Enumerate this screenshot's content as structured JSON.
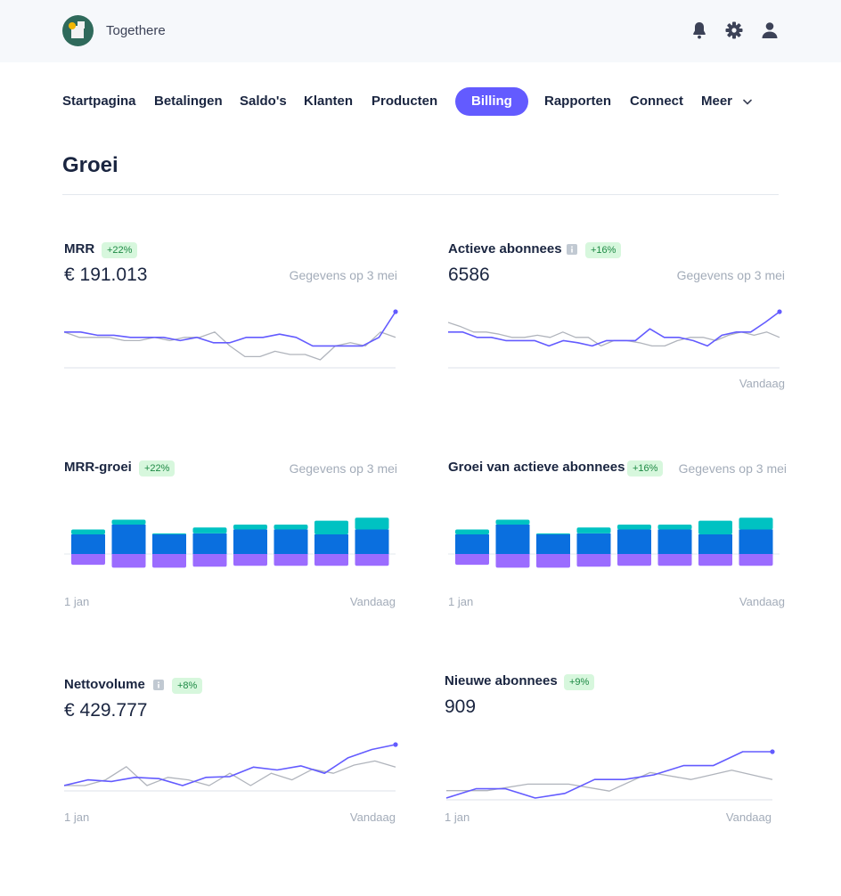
{
  "app": {
    "name": "Togethere"
  },
  "header_icons": [
    "bell-icon",
    "gear-icon",
    "user-icon"
  ],
  "nav": {
    "items": [
      "Startpagina",
      "Betalingen",
      "Saldo's",
      "Klanten",
      "Producten",
      "Billing",
      "Rapporten",
      "Connect",
      "Meer"
    ],
    "active": "Billing"
  },
  "page": {
    "title": "Groei"
  },
  "colors": {
    "accent": "#635bff",
    "previous": "#b0b4bc",
    "teal": "#00c2c2",
    "blue": "#0a6fdf",
    "purple": "#9b6cff",
    "badge_bg": "#d7f7dd",
    "badge_text": "#1e8a45"
  },
  "cards": {
    "mrr": {
      "title": "MRR",
      "badge": "+22%",
      "value": "€ 191.013",
      "note": "Gegevens op 3 mei"
    },
    "active": {
      "title": "Actieve abonnees",
      "badge": "+16%",
      "value": "6586",
      "note": "Gegevens op 3 mei",
      "axis_end": "Vandaag"
    },
    "mrr_growth": {
      "title": "MRR-groei",
      "badge": "+22%",
      "note": "Gegevens op 3 mei",
      "axis_start": "1 jan",
      "axis_end": "Vandaag"
    },
    "active_growth": {
      "title": "Groei van actieve abonnees",
      "badge": "+16%",
      "note": "Gegevens op 3 mei",
      "axis_start": "1 jan",
      "axis_end": "Vandaag"
    },
    "net_volume": {
      "title": "Nettovolume",
      "badge": "+8%",
      "value": "€ 429.777",
      "axis_start": "1 jan",
      "axis_end": "Vandaag"
    },
    "new_subs": {
      "title": "Nieuwe abonnees",
      "badge": "+9%",
      "value": "909",
      "axis_start": "1 jan",
      "axis_end": "Vandaag"
    }
  },
  "chart_data": [
    {
      "id": "mrr",
      "type": "line",
      "series": [
        {
          "values": [
            62,
            62,
            56,
            56,
            52,
            52,
            52,
            46,
            52,
            42,
            42,
            52,
            52,
            58,
            52,
            36,
            36,
            36,
            36,
            52,
            100
          ]
        },
        {
          "values": [
            62,
            52,
            52,
            52,
            46,
            46,
            52,
            46,
            52,
            52,
            62,
            36,
            16,
            16,
            26,
            20,
            20,
            10,
            36,
            42,
            36,
            62,
            52
          ]
        }
      ]
    },
    {
      "id": "active",
      "type": "line",
      "series": [
        {
          "values": [
            62,
            62,
            52,
            52,
            46,
            46,
            46,
            36,
            46,
            42,
            36,
            46,
            46,
            46,
            68,
            52,
            52,
            46,
            36,
            56,
            62,
            62,
            80,
            100
          ]
        },
        {
          "values": [
            80,
            72,
            62,
            62,
            58,
            52,
            52,
            56,
            52,
            62,
            52,
            52,
            36,
            46,
            46,
            42,
            36,
            36,
            46,
            52,
            52,
            46,
            56,
            62,
            56,
            62,
            52
          ]
        }
      ]
    },
    {
      "id": "mrr_growth",
      "type": "bar",
      "categories": [
        "1",
        "2",
        "3",
        "4",
        "5",
        "6",
        "7",
        "8"
      ],
      "series": [
        {
          "values": [
            5,
            5,
            1,
            6,
            5,
            5,
            14,
            12
          ]
        },
        {
          "values": [
            20,
            30,
            20,
            21,
            25,
            25,
            20,
            25
          ]
        },
        {
          "values": [
            -11,
            -14,
            -14,
            -13,
            -12,
            -12,
            -12,
            -12
          ]
        }
      ]
    },
    {
      "id": "active_growth",
      "type": "bar",
      "categories": [
        "1",
        "2",
        "3",
        "4",
        "5",
        "6",
        "7",
        "8"
      ],
      "series": [
        {
          "values": [
            5,
            5,
            1,
            6,
            5,
            5,
            14,
            12
          ]
        },
        {
          "values": [
            20,
            30,
            20,
            21,
            25,
            25,
            20,
            25
          ]
        },
        {
          "values": [
            -11,
            -14,
            -14,
            -13,
            -12,
            -12,
            -12,
            -12
          ]
        }
      ]
    },
    {
      "id": "net_volume",
      "type": "line",
      "series": [
        {
          "values": [
            0,
            14,
            10,
            20,
            17,
            0,
            20,
            22,
            45,
            38,
            48,
            30,
            68,
            88,
            100
          ]
        },
        {
          "values": [
            0,
            0,
            14,
            46,
            0,
            20,
            14,
            0,
            30,
            0,
            30,
            14,
            40,
            30,
            50,
            60,
            45
          ]
        }
      ]
    },
    {
      "id": "new_subs",
      "type": "line",
      "series": [
        {
          "values": [
            0,
            20,
            20,
            0,
            10,
            40,
            40,
            50,
            70,
            70,
            100,
            100
          ]
        },
        {
          "values": [
            16,
            16,
            30,
            30,
            15,
            55,
            40,
            60,
            40
          ]
        }
      ]
    }
  ]
}
